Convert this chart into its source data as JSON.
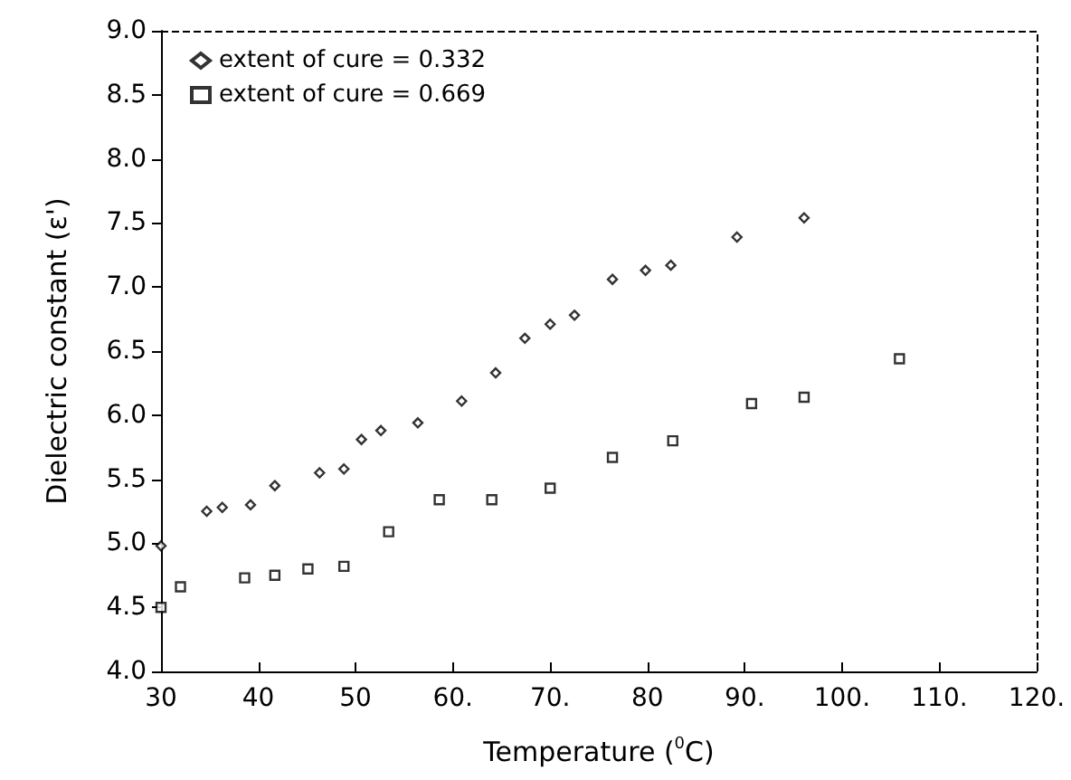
{
  "chart_data": {
    "type": "scatter",
    "xlabel": "Temperature ($^{0}$C)",
    "ylabel": "Dielectric constant (ε')",
    "xlim": [
      30,
      120
    ],
    "xticks": [
      30,
      40,
      50,
      {
        "value": 60,
        "label": "60."
      },
      {
        "value": 70,
        "label": "70."
      },
      {
        "value": 80,
        "label": "80"
      },
      {
        "value": 90,
        "label": "90."
      },
      {
        "value": 100,
        "label": "100."
      },
      {
        "value": 110,
        "label": "110."
      },
      {
        "value": 120,
        "label": "120."
      }
    ],
    "ylim": [
      4,
      9
    ],
    "yticks": [
      {
        "value": 4,
        "label": "4.0"
      },
      {
        "value": 4.5,
        "label": "4.5"
      },
      {
        "value": 5,
        "label": "5.0"
      },
      {
        "value": 5.5,
        "label": "5.5"
      },
      {
        "value": 6,
        "label": "6.0"
      },
      {
        "value": 6.5,
        "label": "6.5"
      },
      {
        "value": 7,
        "label": "7.0"
      },
      {
        "value": 7.5,
        "label": "7.5"
      },
      {
        "value": 8,
        "label": "8.0"
      },
      {
        "value": 8.5,
        "label": "8.5"
      },
      {
        "value": 9,
        "label": "9.0"
      }
    ],
    "grid": false,
    "legend": "top left",
    "series": [
      {
        "name": "extent of cure = 0.332",
        "color": "#000000",
        "marker": "diamond",
        "x": [
          30,
          34.7,
          36.3,
          39.2,
          41.7,
          46.3,
          48.8,
          50.6,
          52.6,
          56.4,
          60.9,
          64.4,
          67.4,
          70.0,
          72.5,
          76.4,
          79.8,
          82.4,
          89.2,
          96.1
        ],
        "values": [
          4.98,
          5.25,
          5.28,
          5.3,
          5.45,
          5.55,
          5.58,
          5.81,
          5.88,
          5.94,
          6.11,
          6.33,
          6.6,
          6.71,
          6.78,
          7.06,
          7.13,
          7.17,
          7.39,
          7.54
        ]
      },
      {
        "name": "extent of cure = 0.669",
        "color": "#000000",
        "marker": "square",
        "x": [
          30,
          32.0,
          38.6,
          41.7,
          45.1,
          48.8,
          53.4,
          58.6,
          64.0,
          70.0,
          76.4,
          82.6,
          90.7,
          96.1,
          105.9
        ],
        "values": [
          4.5,
          4.66,
          4.73,
          4.75,
          4.8,
          4.82,
          5.09,
          5.34,
          5.34,
          5.43,
          5.67,
          5.8,
          6.09,
          6.14,
          6.44
        ]
      }
    ]
  }
}
